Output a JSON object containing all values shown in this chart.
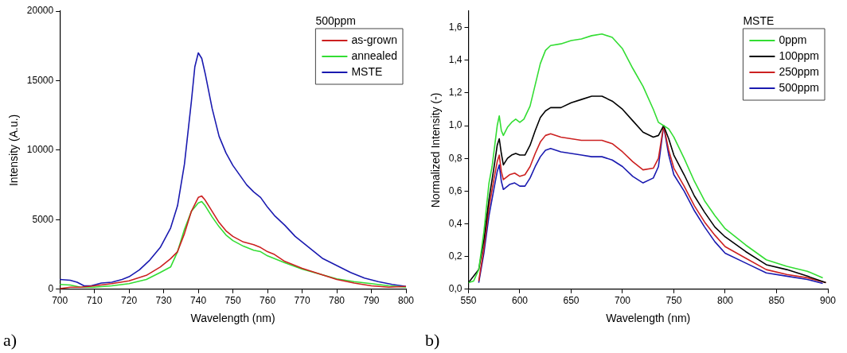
{
  "chart_data": [
    {
      "type": "line",
      "xlabel": "Wavelength (nm)",
      "ylabel": "Intensity (A.u.)",
      "legend_title": "500ppm",
      "legend": "top right",
      "marker": "none",
      "line_style": "solid",
      "grid": false,
      "xlim": [
        700,
        800
      ],
      "xticks": [
        700,
        710,
        720,
        730,
        740,
        750,
        760,
        770,
        780,
        790,
        800
      ],
      "ylim": [
        0,
        20000
      ],
      "yticks": [
        0,
        5000,
        10000,
        15000,
        20000
      ],
      "annotations": [
        "a)"
      ],
      "series": [
        {
          "name": "as-grown",
          "color": "#cc2020",
          "x": [
            700,
            703,
            706,
            710,
            715,
            720,
            725,
            729,
            732,
            734,
            736,
            738,
            740,
            741,
            742,
            744,
            746,
            748,
            750,
            753,
            756,
            758,
            760,
            762,
            765,
            770,
            775,
            780,
            785,
            790,
            795,
            800
          ],
          "values": [
            50,
            150,
            150,
            250,
            400,
            600,
            1000,
            1600,
            2200,
            2700,
            4000,
            5600,
            6600,
            6700,
            6400,
            5600,
            4800,
            4200,
            3800,
            3400,
            3200,
            3000,
            2700,
            2500,
            2000,
            1500,
            1100,
            700,
            450,
            250,
            150,
            200
          ]
        },
        {
          "name": "annealed",
          "color": "#33dd33",
          "x": [
            700,
            703,
            706,
            710,
            715,
            720,
            725,
            729,
            732,
            734,
            736,
            738,
            740,
            741,
            742,
            744,
            746,
            748,
            750,
            753,
            756,
            758,
            760,
            762,
            765,
            770,
            775,
            780,
            785,
            790,
            795,
            800
          ],
          "values": [
            350,
            300,
            150,
            150,
            250,
            400,
            700,
            1200,
            1600,
            2700,
            4300,
            5600,
            6200,
            6300,
            6000,
            5200,
            4500,
            3900,
            3500,
            3100,
            2800,
            2700,
            2400,
            2200,
            1900,
            1450,
            null,
            750,
            550,
            400,
            250,
            150
          ]
        },
        {
          "name": "MSTE",
          "color": "#1a1ab0",
          "x": [
            700,
            703,
            705,
            707,
            709,
            712,
            715,
            718,
            720,
            723,
            726,
            729,
            732,
            734,
            736,
            738,
            739,
            740,
            741,
            742,
            744,
            746,
            748,
            750,
            752,
            754,
            756,
            758,
            760,
            762,
            765,
            768,
            770,
            773,
            776,
            780,
            784,
            788,
            792,
            796,
            800
          ],
          "values": [
            700,
            650,
            500,
            250,
            250,
            450,
            500,
            700,
            900,
            1400,
            2100,
            3000,
            4400,
            6000,
            9000,
            13500,
            16000,
            17000,
            16600,
            15500,
            13000,
            11000,
            9800,
            8900,
            8200,
            7500,
            7000,
            6600,
            5900,
            5300,
            4600,
            3800,
            3400,
            2800,
            2200,
            1700,
            1200,
            800,
            550,
            350,
            200
          ]
        }
      ]
    },
    {
      "type": "line",
      "xlabel": "Wavelength (nm)",
      "ylabel": "Normalized Intensity (-)",
      "legend_title": "MSTE",
      "legend": "top right",
      "marker": "none",
      "line_style": "solid",
      "grid": false,
      "xlim": [
        550,
        900
      ],
      "xticks": [
        550,
        600,
        650,
        700,
        750,
        800,
        850,
        900
      ],
      "ylim": [
        0,
        1.7
      ],
      "yticks": [
        {
          "value": 0,
          "label": "0,0"
        },
        {
          "value": 0.2,
          "label": "0,2"
        },
        {
          "value": 0.4,
          "label": "0,4"
        },
        {
          "value": 0.6,
          "label": "0,6"
        },
        {
          "value": 0.8,
          "label": "0,8"
        },
        {
          "value": 1,
          "label": "1,0"
        },
        {
          "value": 1.2,
          "label": "1,2"
        },
        {
          "value": 1.4,
          "label": "1,4"
        },
        {
          "value": 1.6,
          "label": "1,6"
        }
      ],
      "annotations": [
        "b)"
      ],
      "series": [
        {
          "name": "0ppm",
          "color": "#33dd33",
          "x": [
            550,
            555,
            560,
            565,
            570,
            573,
            576,
            578,
            580,
            582,
            584,
            588,
            592,
            596,
            600,
            604,
            610,
            615,
            620,
            625,
            630,
            640,
            650,
            660,
            670,
            680,
            690,
            700,
            710,
            720,
            730,
            735,
            740,
            745,
            750,
            760,
            770,
            780,
            790,
            800,
            820,
            840,
            860,
            880,
            895
          ],
          "values": [
            0.04,
            0.05,
            0.12,
            0.35,
            0.65,
            0.75,
            0.9,
            1.0,
            1.06,
            0.97,
            0.94,
            0.99,
            1.02,
            1.04,
            1.02,
            1.04,
            1.12,
            1.25,
            1.38,
            1.46,
            1.49,
            1.5,
            1.52,
            1.53,
            1.55,
            1.56,
            1.54,
            1.47,
            1.35,
            1.24,
            1.1,
            1.02,
            1.0,
            0.98,
            0.93,
            0.8,
            0.66,
            0.54,
            0.45,
            0.37,
            0.27,
            0.18,
            0.14,
            0.11,
            0.07
          ]
        },
        {
          "name": "100ppm",
          "color": "#000000",
          "x": [
            550,
            555,
            560,
            565,
            570,
            575,
            578,
            580,
            582,
            584,
            588,
            592,
            596,
            600,
            605,
            610,
            615,
            620,
            625,
            630,
            640,
            650,
            660,
            670,
            680,
            690,
            700,
            710,
            720,
            730,
            735,
            740,
            745,
            750,
            760,
            770,
            780,
            790,
            800,
            820,
            840,
            860,
            880,
            898
          ],
          "values": [
            0.04,
            null,
            0.12,
            0.3,
            0.55,
            0.75,
            0.88,
            0.92,
            0.83,
            0.76,
            0.8,
            0.82,
            0.83,
            0.82,
            0.82,
            0.88,
            0.97,
            1.05,
            1.09,
            1.11,
            1.11,
            1.14,
            1.16,
            1.18,
            1.18,
            1.15,
            1.1,
            1.03,
            0.96,
            0.93,
            0.94,
            1.0,
            0.92,
            0.82,
            0.7,
            0.57,
            0.47,
            0.38,
            0.32,
            0.23,
            0.15,
            0.12,
            0.08,
            0.04
          ]
        },
        {
          "name": "250ppm",
          "color": "#cc2020",
          "x": [
            560,
            565,
            570,
            575,
            578,
            580,
            582,
            584,
            590,
            595,
            600,
            605,
            610,
            615,
            620,
            625,
            630,
            640,
            650,
            660,
            670,
            680,
            690,
            700,
            710,
            720,
            730,
            735,
            740,
            745,
            750,
            760,
            770,
            780,
            790,
            800,
            820,
            840,
            860,
            880,
            898
          ],
          "values": [
            0.05,
            0.25,
            0.5,
            0.68,
            0.78,
            0.82,
            0.72,
            0.67,
            0.7,
            0.71,
            0.69,
            0.7,
            0.75,
            0.83,
            0.9,
            0.94,
            0.95,
            0.93,
            0.92,
            0.91,
            0.91,
            0.91,
            0.89,
            0.84,
            0.78,
            0.73,
            0.74,
            0.8,
            1.0,
            0.85,
            0.74,
            0.63,
            0.51,
            0.41,
            0.33,
            0.26,
            0.19,
            0.12,
            0.09,
            0.07,
            0.04
          ]
        },
        {
          "name": "500ppm",
          "color": "#1a1ab0",
          "x": [
            560,
            565,
            570,
            575,
            578,
            580,
            582,
            584,
            590,
            595,
            600,
            605,
            610,
            615,
            620,
            625,
            630,
            640,
            650,
            660,
            670,
            680,
            690,
            700,
            710,
            720,
            730,
            735,
            740,
            745,
            750,
            760,
            770,
            780,
            790,
            800,
            820,
            840,
            860,
            880,
            895
          ],
          "values": [
            0.04,
            0.22,
            0.45,
            0.62,
            0.72,
            0.76,
            0.66,
            0.61,
            0.64,
            0.65,
            0.63,
            0.63,
            0.68,
            0.75,
            0.81,
            0.85,
            0.86,
            0.84,
            0.83,
            0.82,
            0.81,
            0.81,
            0.79,
            0.75,
            0.69,
            0.65,
            0.68,
            0.75,
            1.0,
            0.82,
            0.7,
            0.6,
            0.48,
            0.38,
            0.29,
            0.22,
            0.16,
            0.1,
            0.08,
            0.06,
            0.035
          ]
        }
      ]
    }
  ]
}
